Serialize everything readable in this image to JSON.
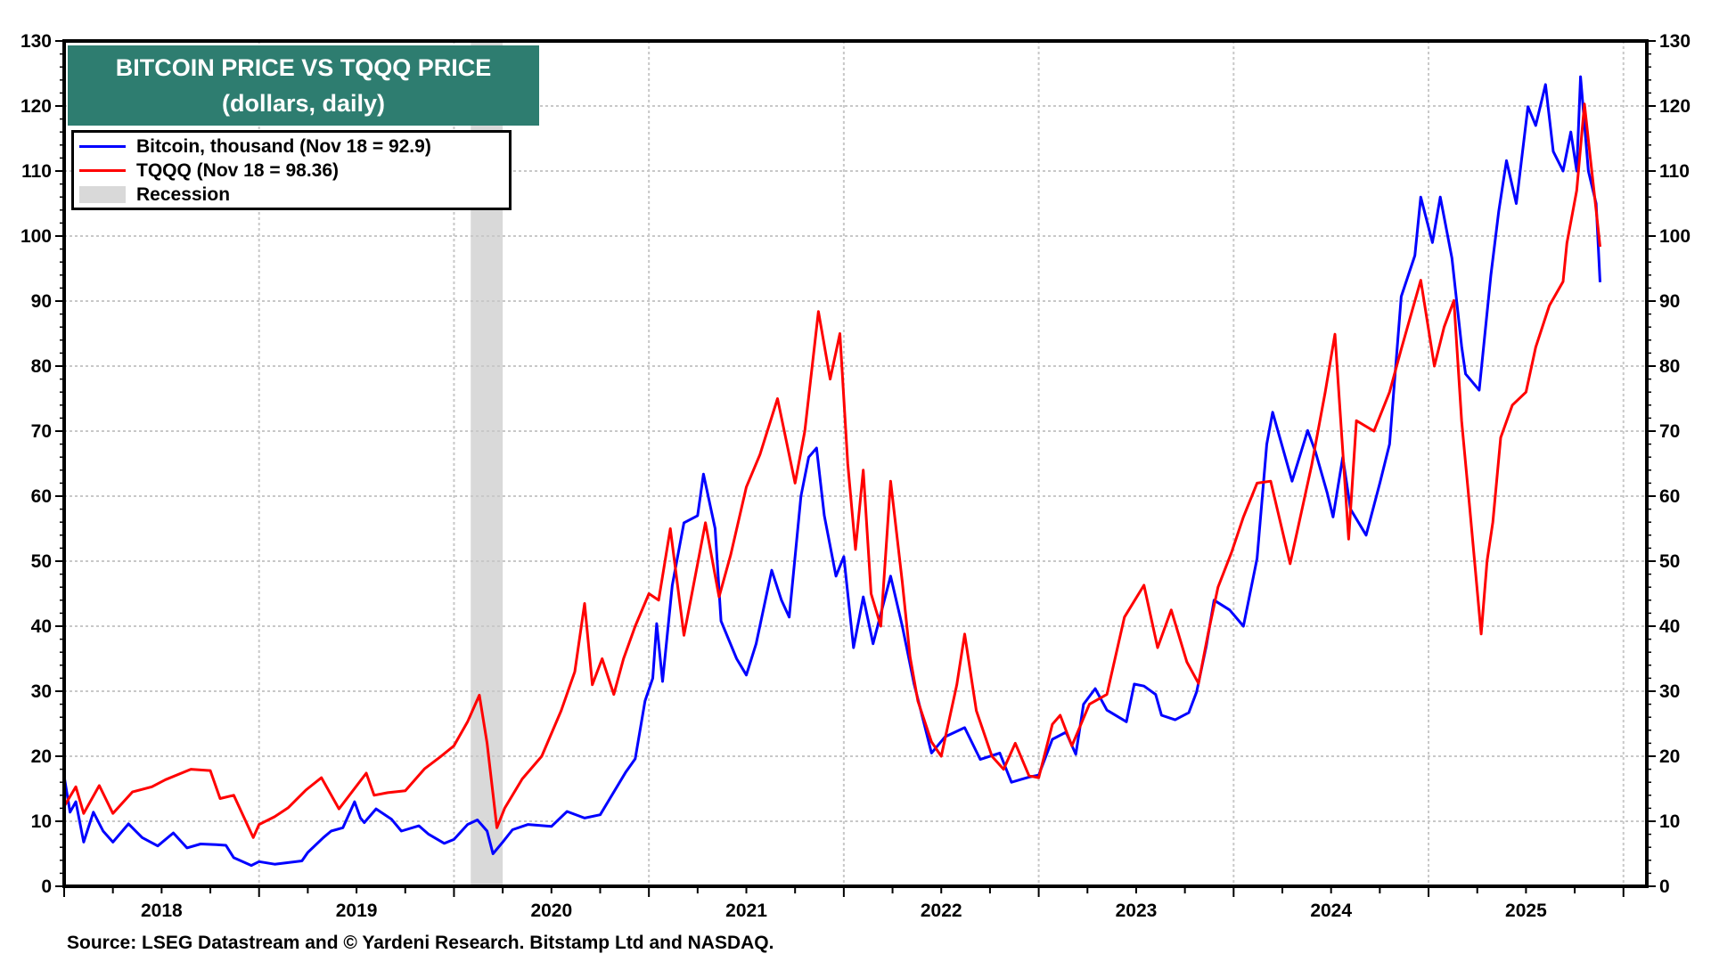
{
  "colors": {
    "bitcoin": "#0000ff",
    "tqqq": "#ff0000",
    "recession": "#d9d9d9",
    "title_bg": "#2e7d70",
    "grid": "#c8c8c8"
  },
  "title": {
    "line1": "BITCOIN PRICE VS TQQQ PRICE",
    "line2": "(dollars, daily)"
  },
  "legend": {
    "items": [
      {
        "label": "Bitcoin, thousand (Nov 18 = 92.9)",
        "type": "line",
        "color": "#0000ff"
      },
      {
        "label": "TQQQ (Nov 18 = 98.36)",
        "type": "line",
        "color": "#ff0000"
      },
      {
        "label": "Recession",
        "type": "box",
        "color": "#d9d9d9"
      }
    ]
  },
  "footer": "Source: LSEG Datastream and © Yardeni Research. Bitstamp Ltd and NASDAQ.",
  "chart_data": {
    "type": "line",
    "title": "BITCOIN PRICE VS TQQQ PRICE",
    "subtitle": "(dollars, daily)",
    "xlabel": "",
    "ylabel": "",
    "x_unit": "decimal year",
    "xlim": [
      2018.0,
      2026.12
    ],
    "ylim": [
      0,
      130
    ],
    "grid": true,
    "legend_position": "top-left",
    "y_ticks": [
      "0",
      "10",
      "20",
      "30",
      "40",
      "50",
      "60",
      "70",
      "80",
      "90",
      "100",
      "110",
      "120",
      "130"
    ],
    "y_tick_values": [
      0,
      10,
      20,
      30,
      40,
      50,
      60,
      70,
      80,
      90,
      100,
      110,
      120,
      130
    ],
    "x_tick_labels": [
      "2018",
      "2019",
      "2020",
      "2021",
      "2022",
      "2023",
      "2024",
      "2025"
    ],
    "x_tick_label_positions": [
      2018.5,
      2019.5,
      2020.5,
      2021.5,
      2022.5,
      2023.5,
      2024.5,
      2025.5
    ],
    "year_boundaries": [
      2018,
      2019,
      2020,
      2021,
      2022,
      2023,
      2024,
      2025,
      2026
    ],
    "recessions": [
      {
        "start": 2020.086,
        "end": 2020.25
      }
    ],
    "series": [
      {
        "name": "Bitcoin, thousand (Nov 18 = 92.9)",
        "color": "#0000ff",
        "x": [
          2018.0,
          2018.03,
          2018.06,
          2018.1,
          2018.15,
          2018.2,
          2018.25,
          2018.33,
          2018.4,
          2018.48,
          2018.56,
          2018.63,
          2018.7,
          2018.78,
          2018.83,
          2018.87,
          2018.96,
          2019.0,
          2019.08,
          2019.22,
          2019.25,
          2019.33,
          2019.37,
          2019.43,
          2019.49,
          2019.52,
          2019.54,
          2019.6,
          2019.68,
          2019.73,
          2019.82,
          2019.87,
          2019.95,
          2020.0,
          2020.07,
          2020.12,
          2020.17,
          2020.2,
          2020.25,
          2020.3,
          2020.38,
          2020.5,
          2020.58,
          2020.67,
          2020.75,
          2020.8,
          2020.88,
          2020.93,
          2020.98,
          2021.02,
          2021.04,
          2021.07,
          2021.12,
          2021.18,
          2021.25,
          2021.28,
          2021.34,
          2021.37,
          2021.45,
          2021.5,
          2021.55,
          2021.63,
          2021.68,
          2021.72,
          2021.78,
          2021.82,
          2021.86,
          2021.9,
          2021.96,
          2022.0,
          2022.05,
          2022.1,
          2022.15,
          2022.24,
          2022.3,
          2022.36,
          2022.45,
          2022.52,
          2022.62,
          2022.7,
          2022.8,
          2022.86,
          2022.95,
          2023.0,
          2023.07,
          2023.14,
          2023.19,
          2023.23,
          2023.29,
          2023.35,
          2023.45,
          2023.49,
          2023.54,
          2023.6,
          2023.63,
          2023.7,
          2023.77,
          2023.81,
          2023.86,
          2023.9,
          2023.98,
          2024.05,
          2024.12,
          2024.17,
          2024.2,
          2024.3,
          2024.38,
          2024.42,
          2024.48,
          2024.51,
          2024.56,
          2024.6,
          2024.68,
          2024.75,
          2024.8,
          2024.86,
          2024.93,
          2024.96,
          2025.02,
          2025.06,
          2025.12,
          2025.17,
          2025.19,
          2025.26,
          2025.32,
          2025.36,
          2025.4,
          2025.45,
          2025.51,
          2025.55,
          2025.6,
          2025.64,
          2025.69,
          2025.73,
          2025.76,
          2025.78,
          2025.82,
          2025.86,
          2025.88
        ],
        "values": [
          16.9,
          11.4,
          13.0,
          6.8,
          11.4,
          8.5,
          6.8,
          9.6,
          7.5,
          6.2,
          8.2,
          5.9,
          6.5,
          6.4,
          6.3,
          4.4,
          3.2,
          3.8,
          3.4,
          3.9,
          5.2,
          7.5,
          8.5,
          9.0,
          13.0,
          10.5,
          9.8,
          11.9,
          10.3,
          8.5,
          9.3,
          8.0,
          6.6,
          7.2,
          9.5,
          10.2,
          8.5,
          5.0,
          6.8,
          8.7,
          9.5,
          9.2,
          11.5,
          10.5,
          11.0,
          13.5,
          17.5,
          19.6,
          28.5,
          32.0,
          40.4,
          31.5,
          46.3,
          55.9,
          57.0,
          63.4,
          55.0,
          40.8,
          35.0,
          32.5,
          37.3,
          48.6,
          44.0,
          41.4,
          60.0,
          66.0,
          67.4,
          57.0,
          47.7,
          50.7,
          36.7,
          44.5,
          37.3,
          47.7,
          40.0,
          31.2,
          20.5,
          23.0,
          24.4,
          19.5,
          20.5,
          16.0,
          16.8,
          17.1,
          22.6,
          23.7,
          20.3,
          28.0,
          30.4,
          27.1,
          25.3,
          31.1,
          30.8,
          29.5,
          26.3,
          25.6,
          26.7,
          29.9,
          37.0,
          44.0,
          42.5,
          40.0,
          50.4,
          68.0,
          72.9,
          62.3,
          70.1,
          66.8,
          60.5,
          56.8,
          66.0,
          58.0,
          54.0,
          62.0,
          68.0,
          90.7,
          97.0,
          106.0,
          99.0,
          106.0,
          96.6,
          83.0,
          78.8,
          76.3,
          94.0,
          103.8,
          111.6,
          105.0,
          119.9,
          117.0,
          123.3,
          113.0,
          110.0,
          116.0,
          110.0,
          124.5,
          110.0,
          105.0,
          92.9
        ]
      },
      {
        "name": "TQQQ (Nov 18 = 98.36)",
        "color": "#ff0000",
        "x": [
          2018.0,
          2018.06,
          2018.1,
          2018.18,
          2018.25,
          2018.35,
          2018.45,
          2018.52,
          2018.65,
          2018.75,
          2018.8,
          2018.87,
          2018.97,
          2019.0,
          2019.08,
          2019.15,
          2019.24,
          2019.32,
          2019.41,
          2019.55,
          2019.59,
          2019.66,
          2019.75,
          2019.85,
          2019.93,
          2020.0,
          2020.07,
          2020.13,
          2020.17,
          2020.22,
          2020.26,
          2020.35,
          2020.45,
          2020.55,
          2020.62,
          2020.67,
          2020.71,
          2020.76,
          2020.82,
          2020.87,
          2020.93,
          2021.0,
          2021.05,
          2021.11,
          2021.18,
          2021.29,
          2021.36,
          2021.42,
          2021.5,
          2021.57,
          2021.66,
          2021.75,
          2021.8,
          2021.87,
          2021.93,
          2021.98,
          2022.02,
          2022.06,
          2022.1,
          2022.14,
          2022.19,
          2022.24,
          2022.3,
          2022.34,
          2022.38,
          2022.45,
          2022.5,
          2022.58,
          2022.62,
          2022.68,
          2022.76,
          2022.82,
          2022.88,
          2022.95,
          2023.0,
          2023.07,
          2023.11,
          2023.17,
          2023.26,
          2023.35,
          2023.44,
          2023.54,
          2023.61,
          2023.68,
          2023.76,
          2023.82,
          2023.87,
          2023.92,
          2023.99,
          2024.05,
          2024.12,
          2024.19,
          2024.29,
          2024.4,
          2024.47,
          2024.52,
          2024.59,
          2024.63,
          2024.72,
          2024.8,
          2024.86,
          2024.96,
          2025.03,
          2025.08,
          2025.13,
          2025.17,
          2025.21,
          2025.27,
          2025.3,
          2025.33,
          2025.37,
          2025.43,
          2025.5,
          2025.55,
          2025.62,
          2025.69,
          2025.71,
          2025.76,
          2025.8,
          2025.83,
          2025.86,
          2025.88
        ],
        "values": [
          12.3,
          15.3,
          11.2,
          15.5,
          11.2,
          14.5,
          15.3,
          16.4,
          18.0,
          17.8,
          13.5,
          14.0,
          7.5,
          9.5,
          10.7,
          12.1,
          14.8,
          16.7,
          11.9,
          17.4,
          14.0,
          14.4,
          14.7,
          18.1,
          19.9,
          21.6,
          25.3,
          29.4,
          22.0,
          9.0,
          12.0,
          16.5,
          20.0,
          27.0,
          33.0,
          43.5,
          31.0,
          35.0,
          29.5,
          35.0,
          40.0,
          45.0,
          44.0,
          55.0,
          38.6,
          55.9,
          44.5,
          51.0,
          61.4,
          66.4,
          75.0,
          62.0,
          70.0,
          88.4,
          78.0,
          85.0,
          65.0,
          51.8,
          64.0,
          45.0,
          40.0,
          62.3,
          46.8,
          35.3,
          28.5,
          22.2,
          20.0,
          31.0,
          38.8,
          27.0,
          20.0,
          18.0,
          22.0,
          17.0,
          16.7,
          24.9,
          26.3,
          21.6,
          28.0,
          29.5,
          41.4,
          46.3,
          36.7,
          42.5,
          34.5,
          31.2,
          39.0,
          46.0,
          51.4,
          56.8,
          62.0,
          62.3,
          49.6,
          64.7,
          76.0,
          84.9,
          53.4,
          71.6,
          70.0,
          76.0,
          82.6,
          93.2,
          80.0,
          86.0,
          90.1,
          71.5,
          58.6,
          38.8,
          50.0,
          56.0,
          69.0,
          74.0,
          76.0,
          82.9,
          89.3,
          93.0,
          98.9,
          107.0,
          120.3,
          112.0,
          104.0,
          98.36
        ]
      }
    ]
  }
}
